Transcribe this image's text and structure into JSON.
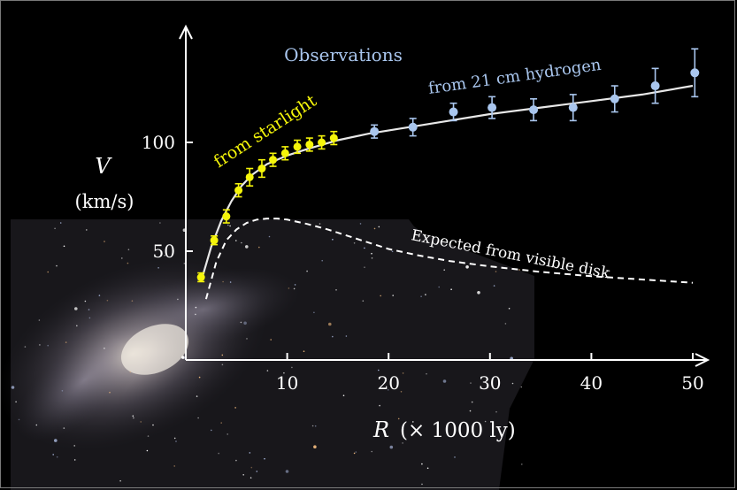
{
  "chart_data": {
    "type": "scatter",
    "xlabel_var": "R",
    "xlabel_unit": "(× 1000 ly)",
    "ylabel_var": "V",
    "ylabel_unit": "(km/s)",
    "xlim": [
      0,
      50
    ],
    "ylim": [
      0,
      135
    ],
    "x_ticks": [
      10,
      20,
      30,
      40,
      50
    ],
    "y_ticks": [
      50,
      100
    ],
    "grid": false,
    "annotations": {
      "observations": "Observations",
      "starlight": "from  starlight",
      "hydrogen": "from 21 cm hydrogen",
      "expected": "Expected from visible disk"
    },
    "series": [
      {
        "name": "from  starlight",
        "color": "#f5f50a",
        "x": [
          1.5,
          2.8,
          4.0,
          5.2,
          6.3,
          7.5,
          8.6,
          9.8,
          11.0,
          12.2,
          13.4,
          14.6
        ],
        "y": [
          38,
          55,
          66,
          78,
          84,
          88,
          92,
          95,
          98,
          99,
          100,
          102
        ],
        "err": [
          2,
          2,
          3,
          3,
          4,
          4,
          3,
          3,
          3,
          3,
          3,
          3
        ]
      },
      {
        "name": "from 21 cm hydrogen",
        "color": "#a9c6ee",
        "x": [
          18.6,
          22.4,
          26.4,
          30.2,
          34.3,
          38.2,
          42.3,
          46.3,
          50.2
        ],
        "y": [
          105,
          107,
          114,
          116,
          115,
          116,
          120,
          126,
          132
        ],
        "err": [
          3,
          4,
          4,
          5,
          5,
          6,
          6,
          8,
          11
        ]
      }
    ],
    "fit_curve": {
      "color": "#e8e8e8",
      "x": [
        1.5,
        2.5,
        3.5,
        4.5,
        5.5,
        6.5,
        8,
        10,
        12,
        15,
        18,
        22,
        26,
        30,
        35,
        40,
        45,
        50
      ],
      "y": [
        36,
        52,
        64,
        73,
        80,
        85,
        90,
        94,
        97,
        101,
        104,
        107,
        110,
        113,
        116,
        119,
        122,
        126
      ]
    },
    "expected_curve": {
      "color": "#ffffff",
      "x": [
        2,
        3,
        4,
        5,
        6,
        7,
        8,
        9,
        10,
        12,
        14,
        16,
        18,
        20,
        23,
        26,
        30,
        35,
        40,
        45,
        50
      ],
      "y": [
        28,
        45,
        55,
        60,
        63,
        64.5,
        65,
        65,
        64.5,
        62.5,
        60,
        57,
        54,
        51,
        48,
        45.5,
        43,
        40.5,
        38.5,
        37,
        35.5
      ]
    }
  }
}
